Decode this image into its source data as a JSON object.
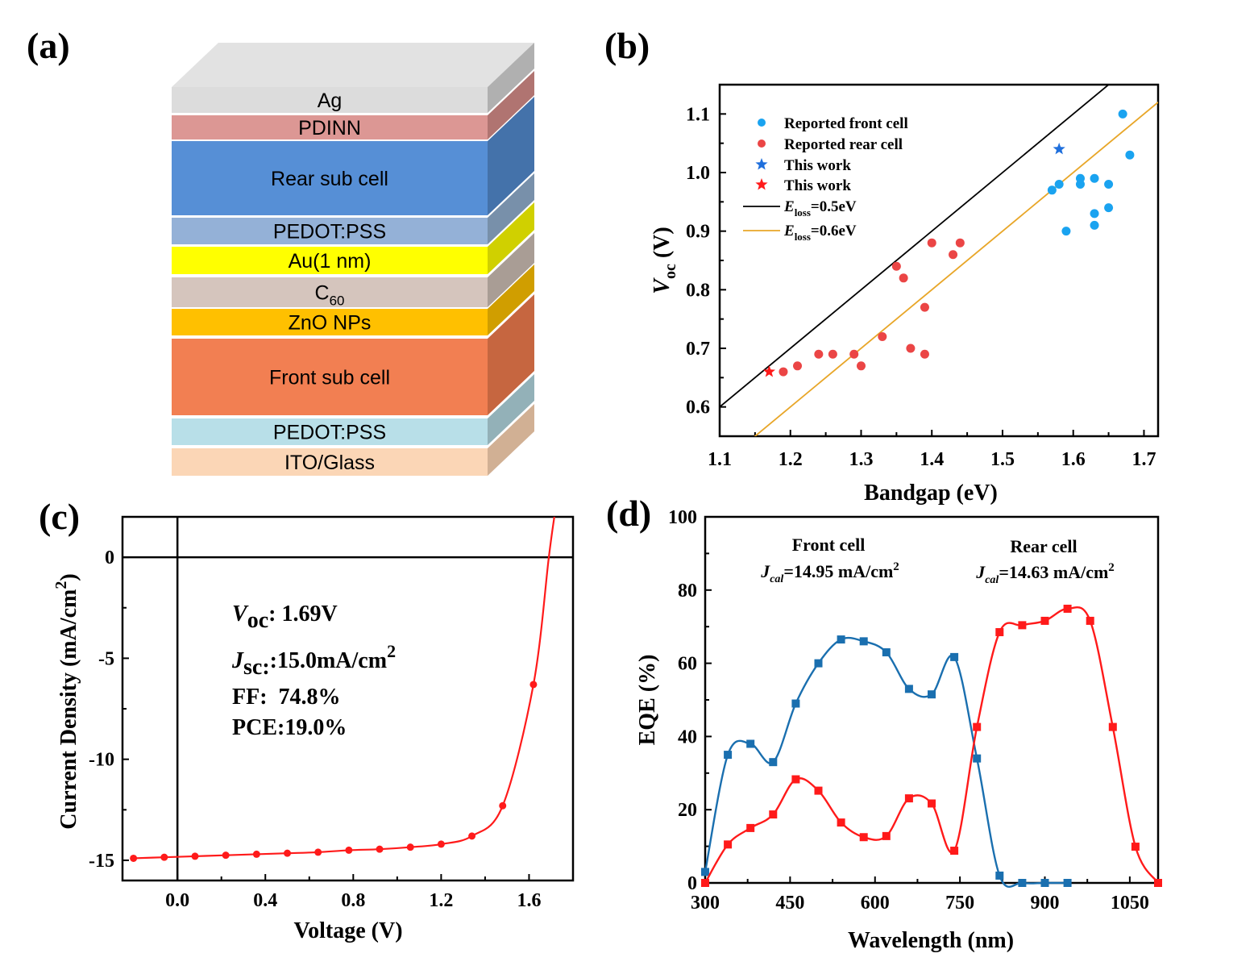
{
  "panel_labels": {
    "a": "(a)",
    "b": "(b)",
    "c": "(c)",
    "d": "(d)"
  },
  "device_stack": {
    "top_color": "#e2e2e2",
    "layers": [
      {
        "label": "Ag",
        "color": "#dcdcdc",
        "side": "#b0b0b0"
      },
      {
        "label": "PDINN",
        "color": "#dc9794",
        "side": "#b07471"
      },
      {
        "label": "Rear sub cell",
        "color": "#568fd6",
        "side": "#4472aa"
      },
      {
        "label": "PEDOT:PSS",
        "color": "#94b1d7",
        "side": "#7890aa"
      },
      {
        "label": "Au(1 nm)",
        "color": "#ffff00",
        "side": "#d0d000"
      },
      {
        "label": "C",
        "sub": "60",
        "color": "#d5c5bd",
        "side": "#a99d95"
      },
      {
        "label": "ZnO NPs",
        "color": "#ffc000",
        "side": "#d09e00"
      },
      {
        "label": "Front sub cell",
        "color": "#f27f52",
        "side": "#c66640"
      },
      {
        "label": "PEDOT:PSS",
        "color": "#b8dfe8",
        "side": "#93b1b8"
      },
      {
        "label": "ITO/Glass",
        "color": "#fbd6b6",
        "side": "#d1b094"
      }
    ]
  },
  "chart_data": [
    {
      "panel": "b",
      "type": "scatter",
      "xlabel": "Bandgap (eV)",
      "ylabel": {
        "main": "V",
        "sub": "oc",
        "unit": " (V)"
      },
      "xlim": [
        1.1,
        1.72
      ],
      "ylim": [
        0.55,
        1.15
      ],
      "xticks": [
        1.1,
        1.2,
        1.3,
        1.4,
        1.5,
        1.6,
        1.7
      ],
      "xtick_labels": [
        "1.1",
        "1.2",
        "1.3",
        "1.4",
        "1.5",
        "1.6",
        "1.7"
      ],
      "yticks": [
        0.6,
        0.7,
        0.8,
        0.9,
        1.0,
        1.1
      ],
      "ytick_labels": [
        "0.6",
        "0.7",
        "0.8",
        "0.9",
        "1.0",
        "1.1"
      ],
      "legend_position": "top-left",
      "series": [
        {
          "name": "Reported front cell",
          "marker": "circle",
          "color": "#1aa3f0",
          "points": [
            [
              1.57,
              0.97
            ],
            [
              1.58,
              0.98
            ],
            [
              1.59,
              0.9
            ],
            [
              1.61,
              0.99
            ],
            [
              1.61,
              0.98
            ],
            [
              1.63,
              0.99
            ],
            [
              1.63,
              0.93
            ],
            [
              1.63,
              0.91
            ],
            [
              1.65,
              0.98
            ],
            [
              1.65,
              0.94
            ],
            [
              1.67,
              1.1
            ],
            [
              1.68,
              1.03
            ]
          ]
        },
        {
          "name": "Reported rear cell",
          "marker": "circle",
          "color": "#eb4545",
          "points": [
            [
              1.19,
              0.66
            ],
            [
              1.21,
              0.67
            ],
            [
              1.24,
              0.69
            ],
            [
              1.26,
              0.69
            ],
            [
              1.29,
              0.69
            ],
            [
              1.3,
              0.67
            ],
            [
              1.33,
              0.72
            ],
            [
              1.35,
              0.84
            ],
            [
              1.36,
              0.82
            ],
            [
              1.37,
              0.7
            ],
            [
              1.39,
              0.77
            ],
            [
              1.39,
              0.69
            ],
            [
              1.4,
              0.88
            ],
            [
              1.43,
              0.86
            ],
            [
              1.44,
              0.88
            ]
          ]
        },
        {
          "name": "This work",
          "marker": "star",
          "color": "#1f6fdc",
          "points": [
            [
              1.58,
              1.04
            ]
          ]
        },
        {
          "name": "This work",
          "marker": "star",
          "color": "#ff1a1a",
          "points": [
            [
              1.17,
              0.66
            ]
          ]
        }
      ],
      "lines": [
        {
          "main": "E",
          "sub": "loss",
          "value": "=0.5eV",
          "offset": 0.5,
          "color": "#000000"
        },
        {
          "main": "E",
          "sub": "loss",
          "value": "=0.6eV",
          "offset": 0.6,
          "color": "#e8a628"
        }
      ]
    },
    {
      "panel": "c",
      "type": "line",
      "xlabel": "Voltage (V)",
      "ylabel": {
        "pre": "Current Density (mA/cm",
        "sup": "2",
        "post": ")"
      },
      "xlim": [
        -0.25,
        1.8
      ],
      "ylim": [
        -16,
        2
      ],
      "xticks": [
        0.0,
        0.4,
        0.8,
        1.2,
        1.6
      ],
      "xtick_labels": [
        "0.0",
        "0.4",
        "0.8",
        "1.2",
        "1.6"
      ],
      "yticks": [
        0,
        -5,
        -10,
        -15
      ],
      "ytick_labels": [
        "0",
        "-5",
        "-10",
        "-15"
      ],
      "color": "#ff1a1a",
      "x": [
        -0.2,
        -0.06,
        0.08,
        0.22,
        0.36,
        0.5,
        0.64,
        0.78,
        0.92,
        1.06,
        1.2,
        1.34,
        1.48,
        1.62
      ],
      "y": [
        -14.9,
        -14.85,
        -14.8,
        -14.75,
        -14.7,
        -14.65,
        -14.6,
        -14.5,
        -14.45,
        -14.35,
        -14.2,
        -13.8,
        -12.3,
        -6.3
      ],
      "curve_end": [
        [
          1.69,
          0
        ],
        [
          1.715,
          2
        ]
      ],
      "annotations": {
        "voc": {
          "main": "V",
          "sub": "oc",
          "value": ": 1.69V"
        },
        "jsc": {
          "main": "J",
          "sub": "sc:",
          "value": ":15.0mA/cm",
          "sup": "2"
        },
        "ff": "FF:  74.8%",
        "pce": "PCE:19.0%"
      }
    },
    {
      "panel": "d",
      "type": "line",
      "xlabel": "Wavelength (nm)",
      "ylabel": "EQE (%)",
      "xlim": [
        300,
        1100
      ],
      "ylim": [
        0,
        100
      ],
      "xticks": [
        300,
        450,
        600,
        750,
        900,
        1050
      ],
      "xtick_labels": [
        "300",
        "450",
        "600",
        "750",
        "900",
        "1050"
      ],
      "yticks": [
        0,
        20,
        40,
        60,
        80,
        100
      ],
      "ytick_labels": [
        "0",
        "20",
        "40",
        "60",
        "80",
        "100"
      ],
      "series": [
        {
          "name": "Front cell",
          "color": "#1a6faf",
          "x": [
            300,
            340,
            380,
            420,
            460,
            500,
            540,
            580,
            620,
            660,
            700,
            740,
            780,
            820,
            860,
            900,
            940
          ],
          "y": [
            3,
            35,
            38,
            33,
            49,
            60,
            66.5,
            66,
            63,
            53,
            51.5,
            61.7,
            34,
            2,
            0,
            0,
            0
          ]
        },
        {
          "name": "Rear cell",
          "color": "#ff1a1a",
          "x": [
            300,
            340,
            380,
            420,
            460,
            500,
            540,
            580,
            620,
            660,
            700,
            740,
            780,
            820,
            860,
            900,
            940,
            980,
            1020,
            1060,
            1100
          ],
          "y": [
            0,
            10.5,
            15,
            18.7,
            28.3,
            25.2,
            16.5,
            12.5,
            12.8,
            23.1,
            21.7,
            8.8,
            42.6,
            68.5,
            70.4,
            71.6,
            74.9,
            71.6,
            42.6,
            9.9,
            0
          ]
        }
      ],
      "annotations": {
        "front": {
          "title": "Front cell",
          "main": "J",
          "sub": "cal",
          "value": "=14.95 mA/cm",
          "sup": "2"
        },
        "rear": {
          "title": "Rear cell",
          "main": "J",
          "sub": "cal",
          "value": "=14.63 mA/cm",
          "sup": "2"
        }
      }
    }
  ]
}
